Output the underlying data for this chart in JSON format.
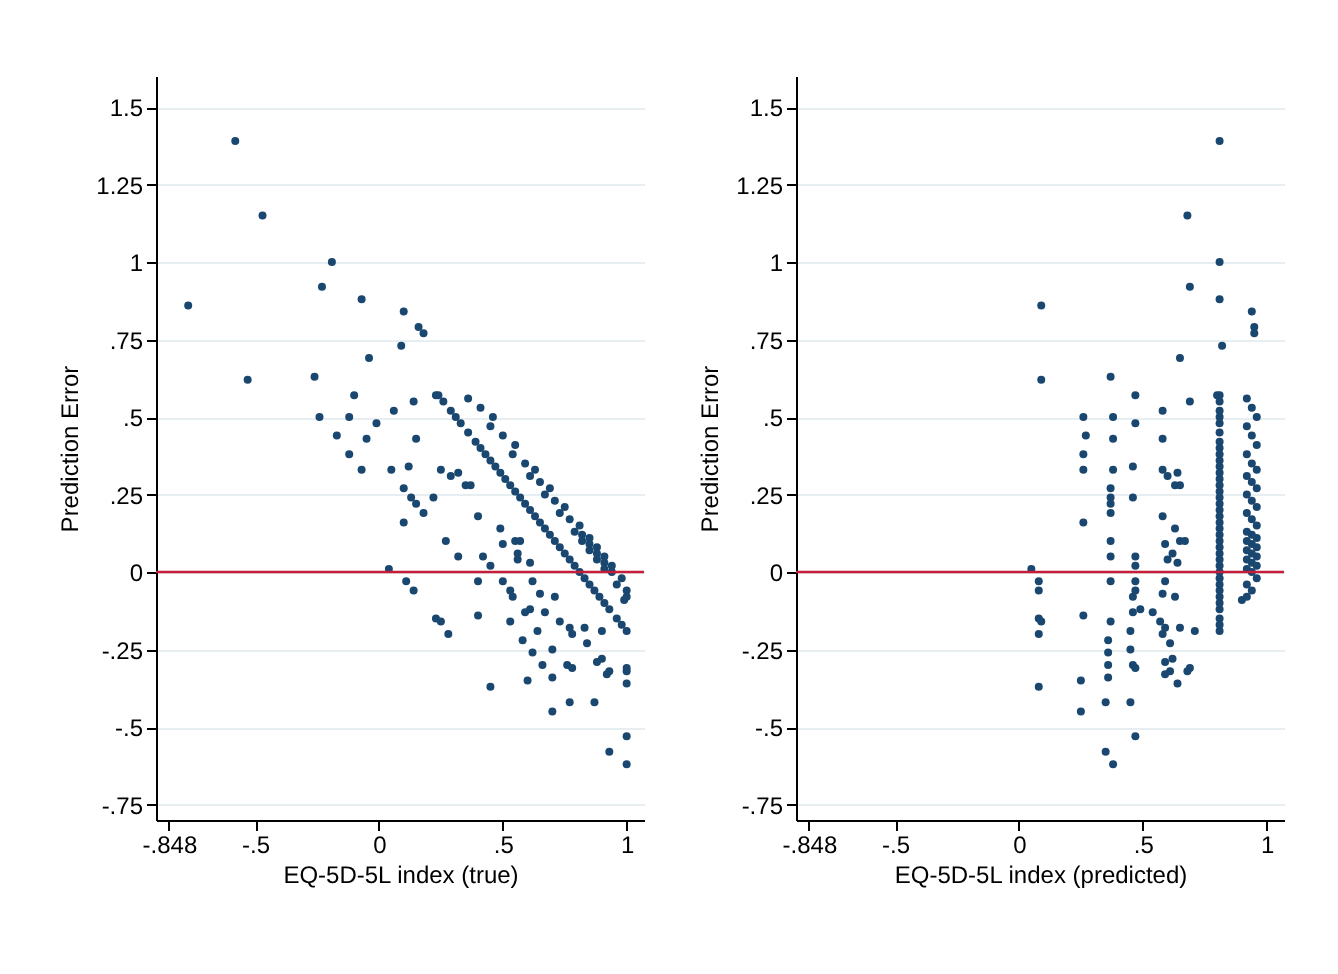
{
  "chart_data": [
    {
      "type": "scatter",
      "xlabel": "EQ-5D-5L index (true)",
      "ylabel": "Prediction Error",
      "color": "#1a476f",
      "marker": "circle",
      "grid": "y",
      "xlim": [
        -0.9,
        1.07
      ],
      "ylim": [
        -0.8,
        1.6
      ],
      "xticks": [
        {
          "value": -0.848,
          "label": "-.848"
        },
        {
          "value": -0.5,
          "label": "-.5"
        },
        {
          "value": 0,
          "label": "0"
        },
        {
          "value": 0.5,
          "label": ".5"
        },
        1
      ],
      "yticks": [
        {
          "value": -0.75,
          "label": "-.75"
        },
        {
          "value": -0.5,
          "label": "-.5"
        },
        {
          "value": -0.25,
          "label": "-.25"
        },
        {
          "value": 0,
          "label": "0"
        },
        {
          "value": 0.25,
          "label": ".25"
        },
        {
          "value": 0.5,
          "label": ".5"
        },
        {
          "value": 0.75,
          "label": ".75"
        },
        1,
        1.25,
        1.5
      ],
      "ref_lines": [
        {
          "axis": "y",
          "value": 0,
          "color": "#c41e3a"
        }
      ],
      "x": [
        -0.58,
        -0.47,
        -0.77,
        -0.53,
        -0.19,
        -0.23,
        -0.07,
        0.1,
        0.16,
        0.18,
        0.09,
        -0.04,
        -0.26,
        -0.1,
        0.06,
        0.14,
        0.23,
        -0.24,
        -0.12,
        -0.01,
        -0.17,
        -0.05,
        0.15,
        -0.12,
        -0.07,
        0.05,
        0.12,
        0.1,
        0.13,
        0.15,
        0.1,
        0.18,
        0.22,
        0.25,
        0.29,
        0.32,
        0.35,
        0.37,
        0.27,
        0.32,
        0.04,
        0.11,
        0.14,
        0.23,
        0.25,
        0.28,
        0.4,
        0.4,
        0.4,
        0.42,
        0.45,
        0.45,
        0.49,
        0.5,
        0.5,
        0.53,
        0.53,
        0.54,
        0.55,
        0.56,
        0.57,
        0.56,
        0.58,
        0.59,
        0.6,
        0.61,
        0.61,
        0.62,
        0.62,
        0.64,
        0.65,
        0.66,
        0.67,
        0.7,
        0.7,
        0.7,
        0.71,
        0.73,
        0.76,
        0.77,
        0.78,
        0.78,
        0.77,
        0.83,
        0.84,
        0.87,
        0.88,
        0.9,
        0.92,
        0.93,
        0.9,
        0.93,
        1.0,
        1.0,
        1.0,
        1.0,
        1.0,
        1.0,
        0.99,
        0.24,
        0.26,
        0.29,
        0.31,
        0.33,
        0.36,
        0.39,
        0.41,
        0.43,
        0.45,
        0.47,
        0.49,
        0.51,
        0.53,
        0.55,
        0.57,
        0.59,
        0.61,
        0.63,
        0.65,
        0.67,
        0.69,
        0.71,
        0.73,
        0.75,
        0.77,
        0.79,
        0.81,
        0.83,
        0.85,
        0.87,
        0.89,
        0.91,
        0.93,
        0.96,
        0.98,
        0.36,
        0.41,
        0.46,
        0.45,
        0.5,
        0.55,
        0.54,
        0.59,
        0.63,
        0.61,
        0.65,
        0.69,
        0.67,
        0.71,
        0.75,
        0.73,
        0.77,
        0.81,
        0.79,
        0.82,
        0.85,
        0.82,
        0.85,
        0.88,
        0.85,
        0.88,
        0.91,
        0.88,
        0.91,
        0.94,
        0.91,
        0.94,
        0.98,
        0.96,
        1.0,
        1.0
      ],
      "values": [
        1.39,
        1.15,
        0.86,
        0.62,
        1.0,
        0.92,
        0.88,
        0.84,
        0.79,
        0.77,
        0.73,
        0.69,
        0.63,
        0.57,
        0.52,
        0.55,
        0.57,
        0.5,
        0.5,
        0.48,
        0.44,
        0.43,
        0.43,
        0.38,
        0.33,
        0.33,
        0.34,
        0.27,
        0.24,
        0.22,
        0.16,
        0.19,
        0.24,
        0.33,
        0.31,
        0.32,
        0.28,
        0.28,
        0.1,
        0.05,
        0.01,
        -0.03,
        -0.06,
        -0.15,
        -0.16,
        -0.2,
        0.18,
        -0.03,
        -0.14,
        0.05,
        0.02,
        -0.37,
        0.14,
        0.09,
        -0.03,
        -0.06,
        -0.16,
        -0.08,
        0.1,
        0.06,
        0.1,
        0.04,
        -0.22,
        -0.13,
        -0.35,
        -0.12,
        0.03,
        -0.03,
        -0.26,
        -0.19,
        -0.07,
        -0.3,
        -0.13,
        -0.45,
        -0.34,
        -0.25,
        -0.08,
        -0.16,
        -0.3,
        -0.18,
        -0.2,
        -0.31,
        -0.42,
        -0.18,
        -0.23,
        -0.42,
        -0.29,
        -0.28,
        -0.33,
        -0.32,
        -0.19,
        -0.58,
        -0.53,
        -0.62,
        -0.31,
        -0.32,
        -0.36,
        -0.19,
        -0.09,
        0.57,
        0.55,
        0.52,
        0.5,
        0.48,
        0.45,
        0.42,
        0.4,
        0.38,
        0.36,
        0.34,
        0.32,
        0.3,
        0.28,
        0.26,
        0.24,
        0.22,
        0.2,
        0.18,
        0.16,
        0.14,
        0.12,
        0.1,
        0.08,
        0.06,
        0.04,
        0.02,
        0,
        -0.02,
        -0.04,
        -0.06,
        -0.08,
        -0.1,
        -0.12,
        -0.15,
        -0.17,
        0.56,
        0.53,
        0.5,
        0.47,
        0.44,
        0.41,
        0.38,
        0.35,
        0.33,
        0.31,
        0.29,
        0.27,
        0.25,
        0.23,
        0.21,
        0.19,
        0.17,
        0.15,
        0.13,
        0.12,
        0.11,
        0.1,
        0.09,
        0.08,
        0.07,
        0.06,
        0.05,
        0.04,
        0.03,
        0.02,
        0.01,
        0,
        -0.02,
        -0.04,
        -0.06,
        -0.08
      ]
    },
    {
      "type": "scatter",
      "xlabel": "EQ-5D-5L index (predicted)",
      "ylabel": "Prediction Error",
      "color": "#1a476f",
      "marker": "circle",
      "grid": "y",
      "xlim": [
        -0.9,
        1.07
      ],
      "ylim": [
        -0.8,
        1.6
      ],
      "xticks": [
        {
          "value": -0.848,
          "label": "-.848"
        },
        {
          "value": -0.5,
          "label": "-.5"
        },
        {
          "value": 0,
          "label": "0"
        },
        {
          "value": 0.5,
          "label": ".5"
        },
        1
      ],
      "yticks": [
        {
          "value": -0.75,
          "label": "-.75"
        },
        {
          "value": -0.5,
          "label": "-.5"
        },
        {
          "value": -0.25,
          "label": "-.25"
        },
        {
          "value": 0,
          "label": "0"
        },
        {
          "value": 0.25,
          "label": ".25"
        },
        {
          "value": 0.5,
          "label": ".5"
        },
        {
          "value": 0.75,
          "label": ".75"
        },
        1,
        1.25,
        1.5
      ],
      "ref_lines": [
        {
          "axis": "y",
          "value": 0,
          "color": "#c41e3a"
        }
      ],
      "x": [
        0.81,
        0.68,
        0.09,
        0.09,
        0.81,
        0.69,
        0.81,
        0.94,
        0.95,
        0.95,
        0.82,
        0.65,
        0.37,
        0.47,
        0.58,
        0.69,
        0.8,
        0.26,
        0.38,
        0.47,
        0.27,
        0.38,
        0.58,
        0.26,
        0.26,
        0.38,
        0.46,
        0.37,
        0.37,
        0.37,
        0.26,
        0.37,
        0.46,
        0.58,
        0.6,
        0.64,
        0.63,
        0.65,
        0.37,
        0.37,
        0.05,
        0.08,
        0.08,
        0.08,
        0.09,
        0.08,
        0.58,
        0.37,
        0.26,
        0.47,
        0.47,
        0.08,
        0.63,
        0.59,
        0.47,
        0.47,
        0.37,
        0.46,
        0.65,
        0.62,
        0.67,
        0.6,
        0.36,
        0.46,
        0.25,
        0.49,
        0.64,
        0.59,
        0.36,
        0.45,
        0.58,
        0.36,
        0.54,
        0.25,
        0.36,
        0.45,
        0.63,
        0.57,
        0.46,
        0.59,
        0.58,
        0.47,
        0.35,
        0.65,
        0.61,
        0.45,
        0.59,
        0.62,
        0.59,
        0.61,
        0.71,
        0.35,
        0.47,
        0.38,
        0.69,
        0.68,
        0.64,
        0.81,
        0.9,
        0.81,
        0.81,
        0.81,
        0.81,
        0.81,
        0.81,
        0.81,
        0.81,
        0.81,
        0.81,
        0.81,
        0.81,
        0.81,
        0.81,
        0.81,
        0.81,
        0.81,
        0.81,
        0.81,
        0.81,
        0.81,
        0.81,
        0.81,
        0.81,
        0.81,
        0.81,
        0.81,
        0.81,
        0.81,
        0.81,
        0.81,
        0.81,
        0.81,
        0.81,
        0.81,
        0.81,
        0.92,
        0.94,
        0.96,
        0.92,
        0.94,
        0.96,
        0.92,
        0.94,
        0.96,
        0.92,
        0.94,
        0.96,
        0.92,
        0.94,
        0.96,
        0.92,
        0.94,
        0.96,
        0.92,
        0.94,
        0.96,
        0.92,
        0.94,
        0.96,
        0.92,
        0.94,
        0.96,
        0.92,
        0.94,
        0.96,
        0.92,
        0.94,
        0.96,
        0.92,
        0.94,
        0.92
      ],
      "values": [
        1.39,
        1.15,
        0.86,
        0.62,
        1.0,
        0.92,
        0.88,
        0.84,
        0.79,
        0.77,
        0.73,
        0.69,
        0.63,
        0.57,
        0.52,
        0.55,
        0.57,
        0.5,
        0.5,
        0.48,
        0.44,
        0.43,
        0.43,
        0.38,
        0.33,
        0.33,
        0.34,
        0.27,
        0.24,
        0.22,
        0.16,
        0.19,
        0.24,
        0.33,
        0.31,
        0.32,
        0.28,
        0.28,
        0.1,
        0.05,
        0.01,
        -0.03,
        -0.06,
        -0.15,
        -0.16,
        -0.2,
        0.18,
        -0.03,
        -0.14,
        0.05,
        0.02,
        -0.37,
        0.14,
        0.09,
        -0.03,
        -0.06,
        -0.16,
        -0.08,
        0.1,
        0.06,
        0.1,
        0.04,
        -0.22,
        -0.13,
        -0.35,
        -0.12,
        0.03,
        -0.03,
        -0.26,
        -0.19,
        -0.07,
        -0.3,
        -0.13,
        -0.45,
        -0.34,
        -0.25,
        -0.08,
        -0.16,
        -0.3,
        -0.18,
        -0.2,
        -0.31,
        -0.42,
        -0.18,
        -0.23,
        -0.42,
        -0.29,
        -0.28,
        -0.33,
        -0.32,
        -0.19,
        -0.58,
        -0.53,
        -0.62,
        -0.31,
        -0.32,
        -0.36,
        -0.19,
        -0.09,
        0.57,
        0.55,
        0.52,
        0.5,
        0.48,
        0.45,
        0.42,
        0.4,
        0.38,
        0.36,
        0.34,
        0.32,
        0.3,
        0.28,
        0.26,
        0.24,
        0.22,
        0.2,
        0.18,
        0.16,
        0.14,
        0.12,
        0.1,
        0.08,
        0.06,
        0.04,
        0.02,
        0,
        -0.02,
        -0.04,
        -0.06,
        -0.08,
        -0.1,
        -0.12,
        -0.15,
        -0.17,
        0.56,
        0.53,
        0.5,
        0.47,
        0.44,
        0.41,
        0.38,
        0.35,
        0.33,
        0.31,
        0.29,
        0.27,
        0.25,
        0.23,
        0.21,
        0.19,
        0.17,
        0.15,
        0.13,
        0.12,
        0.11,
        0.1,
        0.09,
        0.08,
        0.07,
        0.06,
        0.05,
        0.04,
        0.03,
        0.02,
        0.01,
        0,
        -0.02,
        -0.04,
        -0.06,
        -0.08
      ]
    }
  ]
}
